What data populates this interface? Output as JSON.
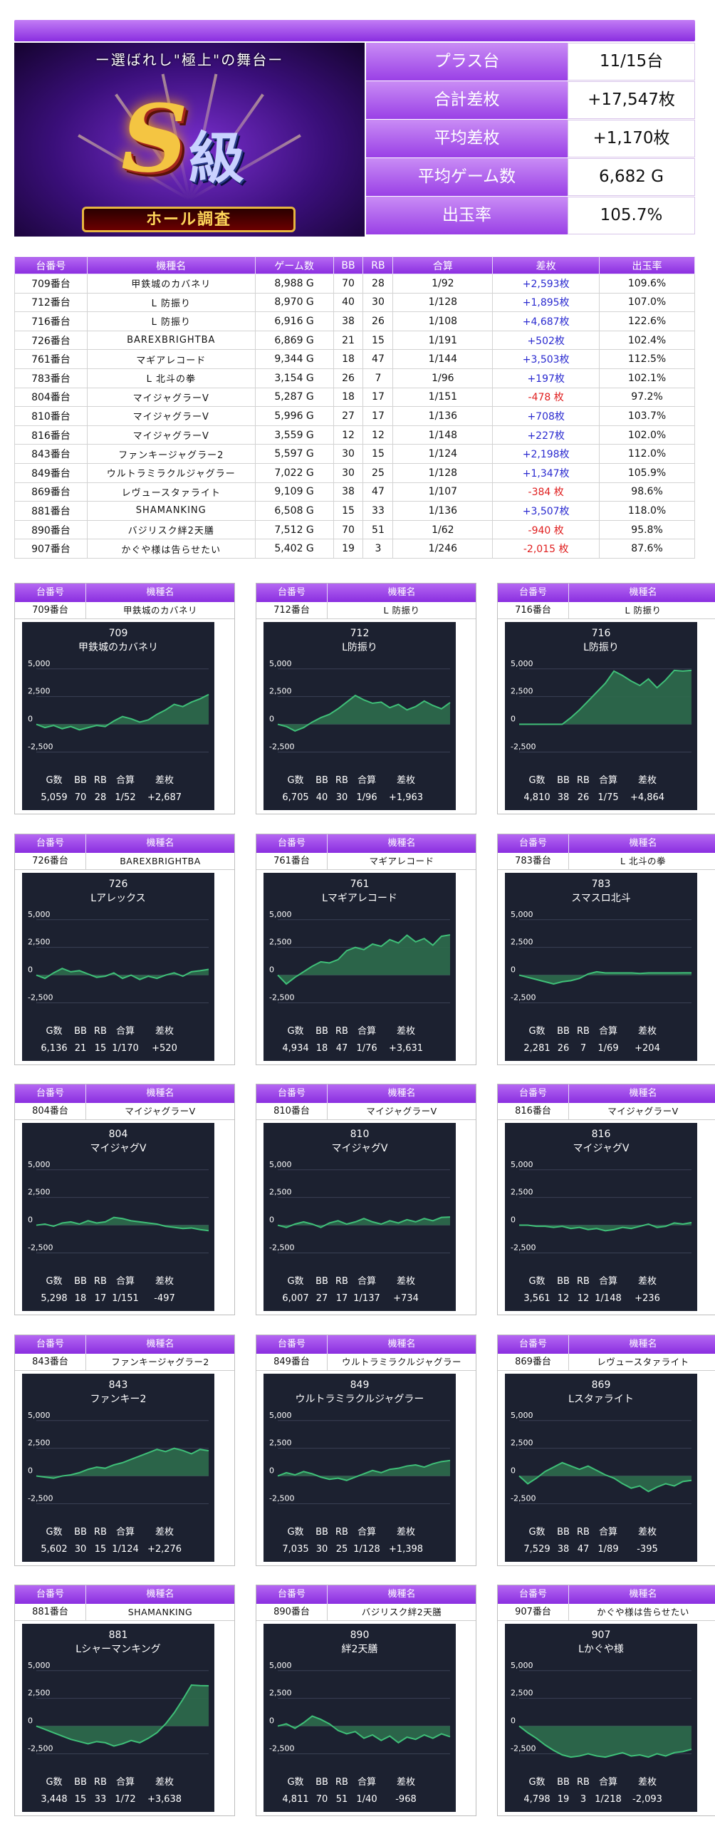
{
  "banner": {
    "motto": "ー選ばれし\"極上\"の舞台ー",
    "s": "S",
    "kyu": "級",
    "plaque": "ホール調査"
  },
  "summary": [
    {
      "label": "プラス台",
      "value": "11/15台"
    },
    {
      "label": "合計差枚",
      "value": "+17,547枚"
    },
    {
      "label": "平均差枚",
      "value": "+1,170枚"
    },
    {
      "label": "平均ゲーム数",
      "value": "6,682 G"
    },
    {
      "label": "出玉率",
      "value": "105.7%"
    }
  ],
  "table": {
    "headers": [
      "台番号",
      "機種名",
      "ゲーム数",
      "BB",
      "RB",
      "合算",
      "差枚",
      "出玉率"
    ],
    "rows": [
      [
        "709番台",
        "甲鉄城のカバネリ",
        "8,988 G",
        "70",
        "28",
        "1/92",
        "+2,593枚",
        "109.6%"
      ],
      [
        "712番台",
        "L 防振り",
        "8,970 G",
        "40",
        "30",
        "1/128",
        "+1,895枚",
        "107.0%"
      ],
      [
        "716番台",
        "L 防振り",
        "6,916 G",
        "38",
        "26",
        "1/108",
        "+4,687枚",
        "122.6%"
      ],
      [
        "726番台",
        "BAREXBRIGHTBA",
        "6,869 G",
        "21",
        "15",
        "1/191",
        "+502枚",
        "102.4%"
      ],
      [
        "761番台",
        "マギアレコード",
        "9,344 G",
        "18",
        "47",
        "1/144",
        "+3,503枚",
        "112.5%"
      ],
      [
        "783番台",
        "L 北斗の拳",
        "3,154 G",
        "26",
        "7",
        "1/96",
        "+197枚",
        "102.1%"
      ],
      [
        "804番台",
        "マイジャグラーV",
        "5,287 G",
        "18",
        "17",
        "1/151",
        "-478 枚",
        "97.2%"
      ],
      [
        "810番台",
        "マイジャグラーV",
        "5,996 G",
        "27",
        "17",
        "1/136",
        "+708枚",
        "103.7%"
      ],
      [
        "816番台",
        "マイジャグラーV",
        "3,559 G",
        "12",
        "12",
        "1/148",
        "+227枚",
        "102.0%"
      ],
      [
        "843番台",
        "ファンキージャグラー2",
        "5,597 G",
        "30",
        "15",
        "1/124",
        "+2,198枚",
        "112.0%"
      ],
      [
        "849番台",
        "ウルトラミラクルジャグラー",
        "7,022 G",
        "30",
        "25",
        "1/128",
        "+1,347枚",
        "105.9%"
      ],
      [
        "869番台",
        "レヴュースタァライト",
        "9,109 G",
        "38",
        "47",
        "1/107",
        "-384 枚",
        "98.6%"
      ],
      [
        "881番台",
        "SHAMANKING",
        "6,508 G",
        "15",
        "33",
        "1/136",
        "+3,507枚",
        "118.0%"
      ],
      [
        "890番台",
        "バジリスク絆2天膳",
        "7,512 G",
        "70",
        "51",
        "1/62",
        "-940 枚",
        "95.8%"
      ],
      [
        "907番台",
        "かぐや様は告らせたい",
        "5,402 G",
        "19",
        "3",
        "1/246",
        "-2,015 枚",
        "87.6%"
      ]
    ]
  },
  "card_header": {
    "col1": "台番号",
    "col2": "機種名"
  },
  "stat_labels": [
    "G数",
    "BB",
    "RB",
    "合算",
    "差枚"
  ],
  "colors": {
    "accent": "#8a2ee0",
    "panel": "#1c2130",
    "line": "#3fbf78",
    "fill": "#2e6b4c"
  },
  "chart_data": [
    {
      "type": "area",
      "unit": "709番台",
      "machine": "甲鉄城のカバネリ",
      "title": "709",
      "subtitle": "甲鉄城のカバネリ",
      "yticks": [
        "5,000",
        "2,500",
        "0",
        "-2,500"
      ],
      "ylim": [
        -3500,
        5500
      ],
      "values": [
        0,
        -300,
        -100,
        -400,
        -200,
        -500,
        -300,
        -100,
        -200,
        300,
        700,
        500,
        200,
        400,
        900,
        1300,
        1800,
        1600,
        2000,
        2300,
        2687
      ],
      "stats": {
        "games": "5,059",
        "bb": "70",
        "rb": "28",
        "total": "1/52",
        "diff": "+2,687"
      }
    },
    {
      "type": "area",
      "unit": "712番台",
      "machine": "L 防振り",
      "title": "712",
      "subtitle": "L防振り",
      "yticks": [
        "5,000",
        "2,500",
        "0",
        "-2,500"
      ],
      "ylim": [
        -3500,
        5500
      ],
      "values": [
        0,
        -200,
        -600,
        -300,
        200,
        600,
        900,
        1400,
        2000,
        2600,
        2200,
        1900,
        2000,
        1500,
        1800,
        1300,
        1600,
        2100,
        1700,
        1400,
        1963
      ],
      "stats": {
        "games": "6,705",
        "bb": "40",
        "rb": "30",
        "total": "1/96",
        "diff": "+1,963"
      }
    },
    {
      "type": "area",
      "unit": "716番台",
      "machine": "L 防振り",
      "title": "716",
      "subtitle": "L防振り",
      "yticks": [
        "5,000",
        "2,500",
        "0",
        "-2,500"
      ],
      "ylim": [
        -3500,
        5500
      ],
      "values": [
        0,
        0,
        0,
        0,
        0,
        0,
        600,
        1300,
        2100,
        2900,
        3700,
        4800,
        4400,
        3900,
        3500,
        4100,
        3300,
        4000,
        4864,
        4800,
        4864
      ],
      "stats": {
        "games": "4,810",
        "bb": "38",
        "rb": "26",
        "total": "1/75",
        "diff": "+4,864"
      }
    },
    {
      "type": "area",
      "unit": "726番台",
      "machine": "BAREXBRIGHTBA",
      "title": "726",
      "subtitle": "Lアレックス",
      "yticks": [
        "5,000",
        "2,500",
        "0",
        "-2,500"
      ],
      "ylim": [
        -3500,
        5500
      ],
      "values": [
        0,
        -300,
        200,
        600,
        300,
        400,
        100,
        -200,
        -100,
        200,
        -300,
        0,
        -400,
        -100,
        -300,
        0,
        200,
        -100,
        300,
        400,
        520
      ],
      "stats": {
        "games": "6,136",
        "bb": "21",
        "rb": "15",
        "total": "1/170",
        "diff": "+520"
      }
    },
    {
      "type": "area",
      "unit": "761番台",
      "machine": "マギアレコード",
      "title": "761",
      "subtitle": "Lマギアレコード",
      "yticks": [
        "5,000",
        "2,500",
        "0",
        "-2,500"
      ],
      "ylim": [
        -3500,
        5500
      ],
      "values": [
        0,
        -800,
        -200,
        300,
        800,
        1200,
        1100,
        1400,
        2200,
        2500,
        2300,
        2800,
        2600,
        3200,
        2900,
        3600,
        3000,
        3300,
        2700,
        3500,
        3631
      ],
      "stats": {
        "games": "4,934",
        "bb": "18",
        "rb": "47",
        "total": "1/76",
        "diff": "+3,631"
      }
    },
    {
      "type": "area",
      "unit": "783番台",
      "machine": "L 北斗の拳",
      "title": "783",
      "subtitle": "スマスロ北斗",
      "yticks": [
        "5,000",
        "2,500",
        "0",
        "-2,500"
      ],
      "ylim": [
        -3500,
        5500
      ],
      "values": [
        0,
        -200,
        -400,
        -600,
        -800,
        -600,
        -500,
        -300,
        100,
        300,
        200,
        200,
        200,
        200,
        150,
        200,
        200,
        200,
        200,
        204,
        204
      ],
      "stats": {
        "games": "2,281",
        "bb": "26",
        "rb": "7",
        "total": "1/69",
        "diff": "+204"
      }
    },
    {
      "type": "area",
      "unit": "804番台",
      "machine": "マイジャグラーV",
      "title": "804",
      "subtitle": "マイジャグV",
      "yticks": [
        "5,000",
        "2,500",
        "0",
        "-2,500"
      ],
      "ylim": [
        -3500,
        5500
      ],
      "values": [
        0,
        100,
        -100,
        200,
        300,
        100,
        400,
        200,
        300,
        700,
        600,
        400,
        300,
        200,
        100,
        -100,
        -200,
        -300,
        -250,
        -400,
        -497
      ],
      "stats": {
        "games": "5,298",
        "bb": "18",
        "rb": "17",
        "total": "1/151",
        "diff": "-497"
      }
    },
    {
      "type": "area",
      "unit": "810番台",
      "machine": "マイジャグラーV",
      "title": "810",
      "subtitle": "マイジャグV",
      "yticks": [
        "5,000",
        "2,500",
        "0",
        "-2,500"
      ],
      "ylim": [
        -3500,
        5500
      ],
      "values": [
        0,
        -200,
        100,
        300,
        100,
        -200,
        200,
        400,
        100,
        300,
        600,
        300,
        100,
        400,
        200,
        500,
        300,
        600,
        400,
        700,
        734
      ],
      "stats": {
        "games": "6,007",
        "bb": "27",
        "rb": "17",
        "total": "1/137",
        "diff": "+734"
      }
    },
    {
      "type": "area",
      "unit": "816番台",
      "machine": "マイジャグラーV",
      "title": "816",
      "subtitle": "マイジャグV",
      "yticks": [
        "5,000",
        "2,500",
        "0",
        "-2,500"
      ],
      "ylim": [
        -3500,
        5500
      ],
      "values": [
        0,
        0,
        -100,
        -100,
        -200,
        -100,
        -300,
        -200,
        -400,
        -300,
        -500,
        -400,
        -200,
        -300,
        -100,
        100,
        -200,
        -100,
        200,
        100,
        236
      ],
      "stats": {
        "games": "3,561",
        "bb": "12",
        "rb": "12",
        "total": "1/148",
        "diff": "+236"
      }
    },
    {
      "type": "area",
      "unit": "843番台",
      "machine": "ファンキージャグラー2",
      "title": "843",
      "subtitle": "ファンキー2",
      "yticks": [
        "5,000",
        "2,500",
        "0",
        "-2,500"
      ],
      "ylim": [
        -3500,
        5500
      ],
      "values": [
        0,
        -100,
        -200,
        0,
        100,
        300,
        600,
        800,
        700,
        1000,
        1200,
        1500,
        1800,
        2100,
        2400,
        2200,
        2500,
        2300,
        2000,
        2400,
        2276
      ],
      "stats": {
        "games": "5,602",
        "bb": "30",
        "rb": "15",
        "total": "1/124",
        "diff": "+2,276"
      }
    },
    {
      "type": "area",
      "unit": "849番台",
      "machine": "ウルトラミラクルジャグラー",
      "title": "849",
      "subtitle": "ウルトラミラクルジャグラー",
      "yticks": [
        "5,000",
        "2,500",
        "0",
        "-2,500"
      ],
      "ylim": [
        -3500,
        5500
      ],
      "values": [
        0,
        300,
        100,
        400,
        200,
        -100,
        -300,
        -200,
        -400,
        -100,
        200,
        500,
        300,
        600,
        700,
        900,
        1000,
        800,
        1100,
        1300,
        1398
      ],
      "stats": {
        "games": "7,035",
        "bb": "30",
        "rb": "25",
        "total": "1/128",
        "diff": "+1,398"
      }
    },
    {
      "type": "area",
      "unit": "869番台",
      "machine": "レヴュースタァライト",
      "title": "869",
      "subtitle": "Lスタァライト",
      "yticks": [
        "5,000",
        "2,500",
        "0",
        "-2,500"
      ],
      "ylim": [
        -3500,
        5500
      ],
      "values": [
        0,
        -700,
        -200,
        400,
        800,
        1200,
        900,
        600,
        900,
        500,
        100,
        -200,
        -700,
        -1100,
        -900,
        -1400,
        -1000,
        -700,
        -900,
        -500,
        -395
      ],
      "stats": {
        "games": "7,529",
        "bb": "38",
        "rb": "47",
        "total": "1/89",
        "diff": "-395"
      }
    },
    {
      "type": "area",
      "unit": "881番台",
      "machine": "SHAMANKING",
      "title": "881",
      "subtitle": "Lシャーマンキング",
      "yticks": [
        "5,000",
        "2,500",
        "0",
        "-2,500"
      ],
      "ylim": [
        -3500,
        5500
      ],
      "values": [
        0,
        -300,
        -600,
        -900,
        -1200,
        -1400,
        -1600,
        -1400,
        -1500,
        -1800,
        -1600,
        -1300,
        -1500,
        -1100,
        -600,
        200,
        1200,
        2400,
        3700,
        3650,
        3638
      ],
      "stats": {
        "games": "3,448",
        "bb": "15",
        "rb": "33",
        "total": "1/72",
        "diff": "+3,638"
      }
    },
    {
      "type": "area",
      "unit": "890番台",
      "machine": "バジリスク絆2天膳",
      "title": "890",
      "subtitle": "絆2天膳",
      "yticks": [
        "5,000",
        "2,500",
        "0",
        "-2,500"
      ],
      "ylim": [
        -3500,
        5500
      ],
      "values": [
        0,
        200,
        -200,
        300,
        900,
        600,
        200,
        -400,
        -700,
        -500,
        -1100,
        -800,
        -1300,
        -900,
        -1500,
        -1000,
        -1200,
        -800,
        -1100,
        -700,
        -968
      ],
      "stats": {
        "games": "4,811",
        "bb": "70",
        "rb": "51",
        "total": "1/40",
        "diff": "-968"
      }
    },
    {
      "type": "area",
      "unit": "907番台",
      "machine": "かぐや様は告らせたい",
      "title": "907",
      "subtitle": "Lかぐや様",
      "yticks": [
        "5,000",
        "2,500",
        "0",
        "-2,500"
      ],
      "ylim": [
        -3500,
        5500
      ],
      "values": [
        0,
        -600,
        -1100,
        -1700,
        -2200,
        -2600,
        -2800,
        -2700,
        -2500,
        -2700,
        -2800,
        -2600,
        -2400,
        -2700,
        -2600,
        -2800,
        -2500,
        -2700,
        -2400,
        -2300,
        -2093
      ],
      "stats": {
        "games": "4,798",
        "bb": "19",
        "rb": "3",
        "total": "1/218",
        "diff": "-2,093"
      }
    }
  ]
}
